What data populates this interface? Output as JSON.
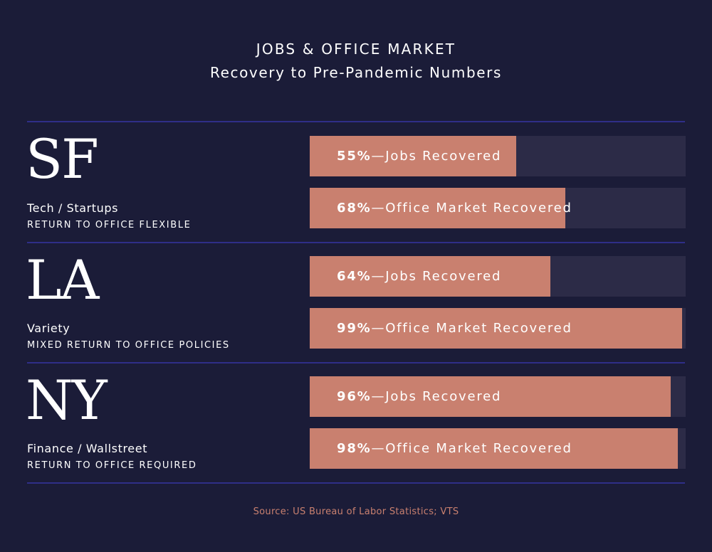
{
  "header": {
    "title": "JOBS & OFFICE MARKET",
    "subtitle": "Recovery to Pre-Pandemic Numbers"
  },
  "source": "Source: US Bureau of Labor Statistics; VTS",
  "colors": {
    "background": "#1b1c38",
    "bar_fill": "#c9806f",
    "bar_track": "#2c2b47",
    "divider": "#2f2e88"
  },
  "chart_data": {
    "type": "bar",
    "orientation": "horizontal",
    "title": "JOBS & OFFICE MARKET",
    "subtitle": "Recovery to Pre-Pandemic Numbers",
    "value_unit": "%",
    "xlim": [
      0,
      100
    ],
    "groups": [
      {
        "city": "SF",
        "sector": "Tech / Startups",
        "policy": "RETURN TO OFFICE FLEXIBLE",
        "bars": [
          {
            "metric": "Jobs Recovered",
            "value": 55,
            "value_label": "55%"
          },
          {
            "metric": "Office Market Recovered",
            "value": 68,
            "value_label": "68%"
          }
        ]
      },
      {
        "city": "LA",
        "sector": "Variety",
        "policy": "MIXED RETURN TO OFFICE POLICIES",
        "bars": [
          {
            "metric": "Jobs Recovered",
            "value": 64,
            "value_label": "64%"
          },
          {
            "metric": "Office Market Recovered",
            "value": 99,
            "value_label": "99%"
          }
        ]
      },
      {
        "city": "NY",
        "sector": "Finance / Wallstreet",
        "policy": "RETURN TO OFFICE REQUIRED",
        "bars": [
          {
            "metric": "Jobs Recovered",
            "value": 96,
            "value_label": "96%"
          },
          {
            "metric": "Office Market Recovered",
            "value": 98,
            "value_label": "98%"
          }
        ]
      }
    ]
  }
}
